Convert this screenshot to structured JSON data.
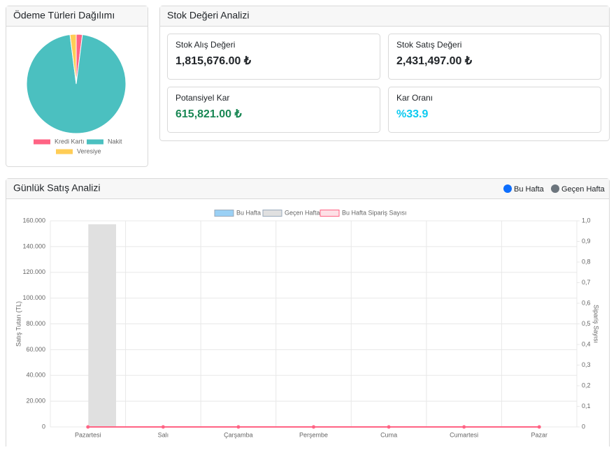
{
  "payment": {
    "title": "Ödeme Türleri Dağılımı",
    "chart_data": {
      "type": "pie",
      "categories": [
        "Kredi Kartı",
        "Nakit",
        "Veresiye"
      ],
      "values": [
        2,
        96,
        2
      ],
      "colors": [
        "#ff6384",
        "#4bc0c0",
        "#ffcd56"
      ]
    }
  },
  "stock": {
    "title": "Stok Değeri Analizi",
    "cards": [
      {
        "label": "Stok Alış Değeri",
        "value": "1,815,676.00 ₺",
        "color": "#212529"
      },
      {
        "label": "Stok Satış Değeri",
        "value": "2,431,497.00 ₺",
        "color": "#212529"
      },
      {
        "label": "Potansiyel Kar",
        "value": "615,821.00 ₺",
        "color": "#198754"
      },
      {
        "label": "Kar Oranı",
        "value": "%33.9",
        "color": "#0dcaf0"
      }
    ]
  },
  "sales": {
    "title": "Günlük Satış Analizi",
    "legend": [
      {
        "name": "Bu Hafta",
        "color": "#0d6efd"
      },
      {
        "name": "Geçen Hafta",
        "color": "#6c757d"
      }
    ],
    "chart_data": {
      "type": "bar",
      "categories": [
        "Pazartesi",
        "Salı",
        "Çarşamba",
        "Perşembe",
        "Cuma",
        "Cumartesi",
        "Pazar"
      ],
      "series": [
        {
          "name": "Bu Hafta",
          "type": "bar",
          "color": "#9ad0f5",
          "values": [
            0,
            0,
            0,
            0,
            0,
            0,
            0
          ]
        },
        {
          "name": "Geçen Hafta",
          "type": "bar",
          "color": "#e0e0e0",
          "values": [
            157000,
            0,
            0,
            0,
            0,
            0,
            0
          ]
        },
        {
          "name": "Bu Hafta Sipariş Sayısı",
          "type": "line",
          "axis": "y2",
          "color": "#ff6384",
          "values": [
            0,
            0,
            0,
            0,
            0,
            0,
            0
          ]
        }
      ],
      "ylabel": "Satış Tutarı (TL)",
      "y2label": "Sipariş Sayısı",
      "ylim": [
        0,
        160000
      ],
      "yticks": [
        0,
        {
          "value": 20000,
          "label": "20.000"
        },
        {
          "value": 40000,
          "label": "40.000"
        },
        {
          "value": 60000,
          "label": "60.000"
        },
        {
          "value": 80000,
          "label": "80.000"
        },
        {
          "value": 100000,
          "label": "100.000"
        },
        {
          "value": 120000,
          "label": "120.000"
        },
        {
          "value": 140000,
          "label": "140.000"
        },
        {
          "value": 160000,
          "label": "160.000"
        }
      ],
      "y2lim": [
        0,
        1
      ],
      "y2ticks": [
        0,
        {
          "value": 0.1,
          "label": "0,1"
        },
        {
          "value": 0.2,
          "label": "0,2"
        },
        {
          "value": 0.3,
          "label": "0,3"
        },
        {
          "value": 0.4,
          "label": "0,4"
        },
        {
          "value": 0.5,
          "label": "0,5"
        },
        {
          "value": 0.6,
          "label": "0,6"
        },
        {
          "value": 0.7,
          "label": "0,7"
        },
        {
          "value": 0.8,
          "label": "0,8"
        },
        {
          "value": 0.9,
          "label": "0,9"
        },
        {
          "value": 1,
          "label": "1,0"
        }
      ],
      "grid": true
    }
  }
}
